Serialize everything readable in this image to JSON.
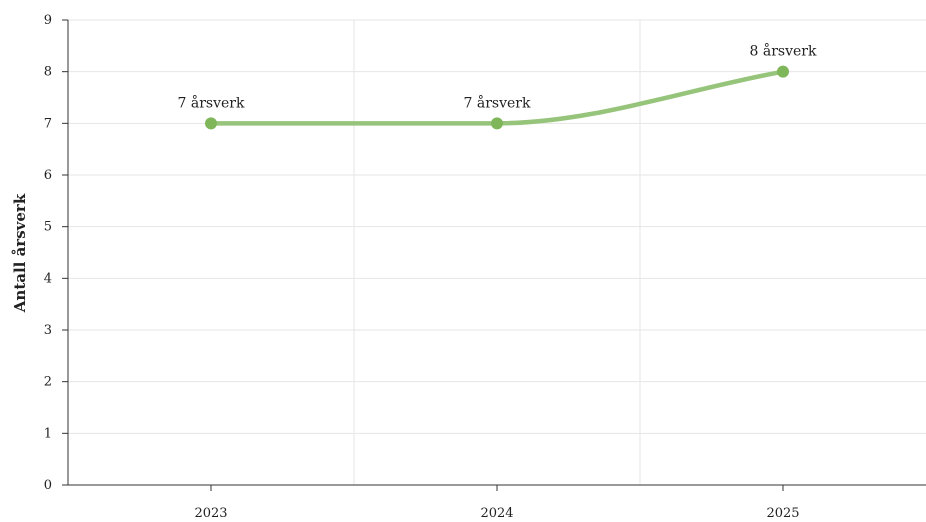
{
  "chart_data": {
    "type": "line",
    "categories": [
      "2023",
      "2024",
      "2025"
    ],
    "series": [
      {
        "values": [
          7,
          7,
          8
        ],
        "data_labels": [
          "7 årsverk",
          "7 årsverk",
          "8 årsverk"
        ],
        "color": "#7fb65a"
      }
    ],
    "ylabel": "Antall årsverk",
    "ylim": [
      0,
      9
    ],
    "y_ticks": [
      "0",
      "1",
      "2",
      "3",
      "4",
      "5",
      "6",
      "7",
      "8",
      "9"
    ],
    "grid": true,
    "curve": "smooth"
  },
  "colors": {
    "line": "#96c47a",
    "marker": "#7fb65a",
    "grid": "#e6e6e6",
    "axis": "#333333"
  }
}
